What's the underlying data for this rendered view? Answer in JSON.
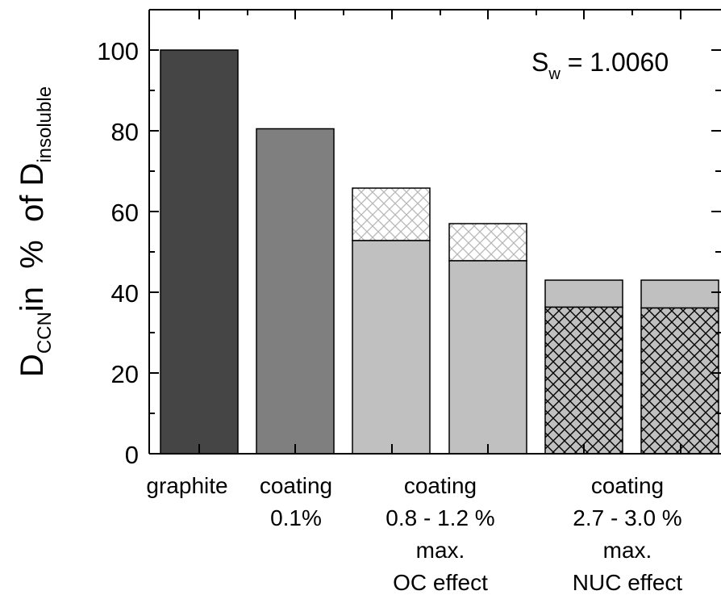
{
  "chart_data": {
    "type": "bar",
    "ylabel": {
      "main": "D",
      "sub1": "CCN",
      "mid": "in  %  of D",
      "sub2": "insoluble"
    },
    "annotation": {
      "main": "S",
      "sub": "w",
      "rest": " = 1.0060"
    },
    "ylim": [
      0,
      110
    ],
    "yticks": [
      "0",
      "20",
      "40",
      "60",
      "80",
      "100"
    ],
    "grid": false,
    "bars": [
      {
        "total": 100,
        "lower": 100,
        "lower_fill": "dark",
        "upper_fill": "none"
      },
      {
        "total": 80.5,
        "lower": 80.5,
        "lower_fill": "medium",
        "upper_fill": "none"
      },
      {
        "total": 65.8,
        "lower": 52.8,
        "lower_fill": "light",
        "upper_fill": "light-hatch"
      },
      {
        "total": 57.0,
        "lower": 47.8,
        "lower_fill": "light",
        "upper_fill": "light-hatch"
      },
      {
        "total": 43.0,
        "lower": 36.3,
        "lower_fill": "dense-hatch",
        "upper_fill": "light"
      },
      {
        "total": 43.0,
        "lower": 36.1,
        "lower_fill": "dense-hatch",
        "upper_fill": "light"
      }
    ],
    "category_labels": [
      {
        "lines": [
          "graphite"
        ]
      },
      {
        "lines": [
          "coating",
          "0.1%"
        ]
      },
      {
        "lines": [
          "coating",
          "0.8 - 1.2 %",
          "max.",
          "OC effect"
        ]
      },
      {
        "lines": [
          "coating",
          "2.7 - 3.0 %",
          "max.",
          "NUC effect"
        ]
      }
    ],
    "colors": {
      "dark": "#454545",
      "medium": "#7f7f7f",
      "light": "#c0c0c0",
      "hatch_light": "#b8b8b8",
      "hatch_dense": "#000000"
    }
  }
}
